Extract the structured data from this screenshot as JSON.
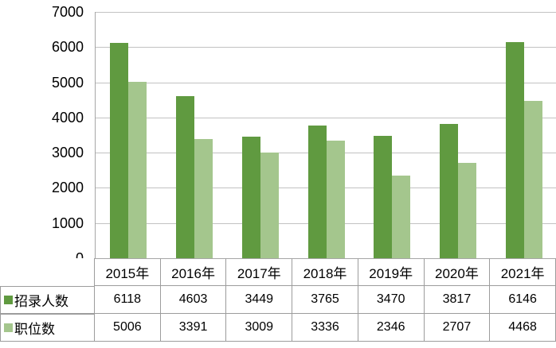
{
  "chart_data": {
    "type": "bar",
    "title": "",
    "xlabel": "",
    "ylabel": "",
    "categories": [
      "2015年",
      "2016年",
      "2017年",
      "2018年",
      "2019年",
      "2020年",
      "2021年"
    ],
    "series": [
      {
        "name": "招录人数",
        "color": "#609A40",
        "values": [
          6118,
          4603,
          3449,
          3765,
          3470,
          3817,
          6146
        ]
      },
      {
        "name": "职位数",
        "color": "#A4C68D",
        "values": [
          5006,
          3391,
          3009,
          3336,
          2346,
          2707,
          4468
        ]
      }
    ],
    "ylim": [
      0,
      7000
    ],
    "yticks": [
      0,
      1000,
      2000,
      3000,
      4000,
      5000,
      6000,
      7000
    ],
    "grid": true,
    "legend_position": "data-table-left",
    "data_table": true
  },
  "colors": {
    "series_1": "#609A40",
    "series_2": "#A4C68D",
    "gridline": "#C2C2C2",
    "axis": "#A6A6A6",
    "table_border": "#9C9C9C",
    "text": "#000000",
    "background": "#FFFFFF"
  }
}
